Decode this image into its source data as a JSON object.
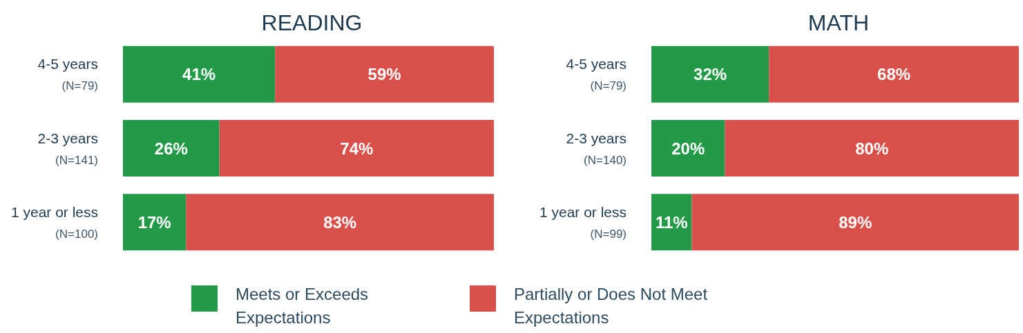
{
  "chart_data": [
    {
      "type": "bar",
      "title": "READING",
      "orientation": "horizontal",
      "stacked": true,
      "categories": [
        "4-5 years\n(N=79)",
        "2-3 years\n(N=141)",
        "1 year or less\n(N=100)"
      ],
      "xlim": [
        0,
        100
      ],
      "tick_labels": "y",
      "grid": false,
      "legend": "bottom",
      "series": [
        {
          "name": "Meets or Exceeds Expectations",
          "color": "#229a48",
          "values": [
            41,
            26,
            17
          ],
          "value_labels": [
            "41%",
            "26%",
            "17%"
          ]
        },
        {
          "name": "Partially or Does Not Meet Expectations",
          "color": "#d9504a",
          "values": [
            59,
            74,
            83
          ],
          "value_labels": [
            "59%",
            "74%",
            "83%"
          ]
        }
      ]
    },
    {
      "type": "bar",
      "title": "MATH",
      "orientation": "horizontal",
      "stacked": true,
      "categories": [
        "4-5 years\n(N=79)",
        "2-3 years\n(N=140)",
        "1 year or less\n(N=99)"
      ],
      "xlim": [
        0,
        100
      ],
      "tick_labels": "y",
      "grid": false,
      "series": [
        {
          "color": "#229a48",
          "values": [
            32,
            20,
            11
          ],
          "value_labels": [
            "32%",
            "20%",
            "11%"
          ]
        },
        {
          "color": "#d9504a",
          "values": [
            68,
            80,
            89
          ],
          "value_labels": [
            "68%",
            "80%",
            "89%"
          ]
        }
      ]
    }
  ]
}
